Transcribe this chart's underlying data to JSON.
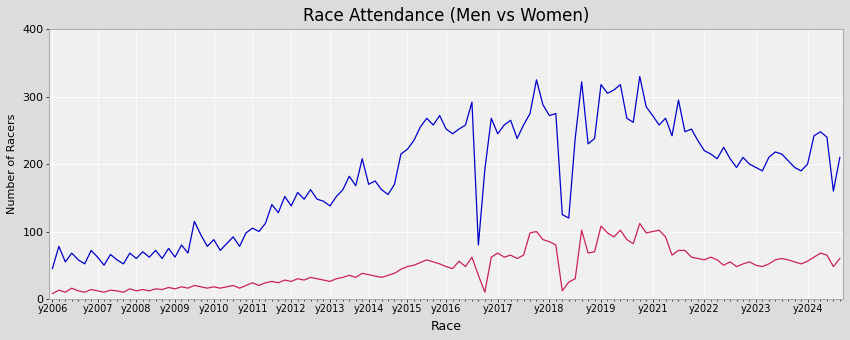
{
  "title": "Race Attendance (Men vs Women)",
  "xlabel": "Race",
  "ylabel": "Number of Racers",
  "ylim": [
    0,
    400
  ],
  "yticks": [
    0,
    100,
    200,
    300,
    400
  ],
  "background_color": "#dcdcdc",
  "plot_bg_color": "#f0f0f0",
  "men_color": "#0000cc",
  "women_color": "#cc2255",
  "men_linewidth": 0.9,
  "women_linewidth": 0.9,
  "xtick_labels": [
    "y2006",
    "y2007",
    "y2008",
    "y2009",
    "y2010",
    "y2011",
    "y2012",
    "y2013",
    "y2014",
    "y2015",
    "y2016",
    "y2017",
    "y2018",
    "y2019",
    "y2021",
    "y2022",
    "y2023",
    "y2024"
  ],
  "men_data": [
    45,
    78,
    55,
    68,
    58,
    52,
    72,
    62,
    50,
    66,
    58,
    52,
    68,
    60,
    70,
    62,
    72,
    60,
    75,
    62,
    80,
    68,
    115,
    95,
    78,
    88,
    72,
    82,
    92,
    78,
    98,
    105,
    100,
    112,
    140,
    128,
    152,
    138,
    158,
    148,
    162,
    148,
    145,
    138,
    152,
    162,
    182,
    168,
    208,
    170,
    175,
    162,
    155,
    170,
    215,
    222,
    235,
    255,
    268,
    258,
    272,
    252,
    245,
    252,
    258,
    292,
    80,
    192,
    268,
    245,
    258,
    265,
    238,
    258,
    275,
    325,
    288,
    272,
    275,
    125,
    120,
    238,
    322,
    230,
    238,
    318,
    305,
    310,
    318,
    268,
    262,
    330,
    285,
    272,
    258,
    268,
    242,
    295,
    248,
    252,
    235,
    220,
    215,
    208,
    225,
    208,
    195,
    210,
    200,
    195,
    190,
    210,
    218,
    215,
    205,
    195,
    190,
    200,
    242,
    248,
    240,
    160,
    210
  ],
  "women_data": [
    8,
    13,
    10,
    16,
    12,
    10,
    14,
    12,
    10,
    13,
    12,
    10,
    15,
    12,
    14,
    12,
    15,
    14,
    17,
    15,
    18,
    16,
    20,
    18,
    16,
    18,
    16,
    18,
    20,
    16,
    20,
    24,
    20,
    24,
    26,
    24,
    28,
    26,
    30,
    28,
    32,
    30,
    28,
    26,
    30,
    32,
    35,
    32,
    38,
    36,
    34,
    32,
    35,
    38,
    44,
    48,
    50,
    54,
    58,
    55,
    52,
    48,
    45,
    56,
    48,
    62,
    35,
    10,
    62,
    68,
    62,
    65,
    60,
    65,
    98,
    100,
    88,
    85,
    80,
    12,
    25,
    30,
    102,
    68,
    70,
    108,
    98,
    92,
    102,
    88,
    82,
    112,
    98,
    100,
    102,
    92,
    65,
    72,
    72,
    62,
    60,
    58,
    62,
    58,
    50,
    55,
    48,
    52,
    55,
    50,
    48,
    52,
    58,
    60,
    58,
    55,
    52,
    56,
    62,
    68,
    65,
    48,
    60
  ]
}
